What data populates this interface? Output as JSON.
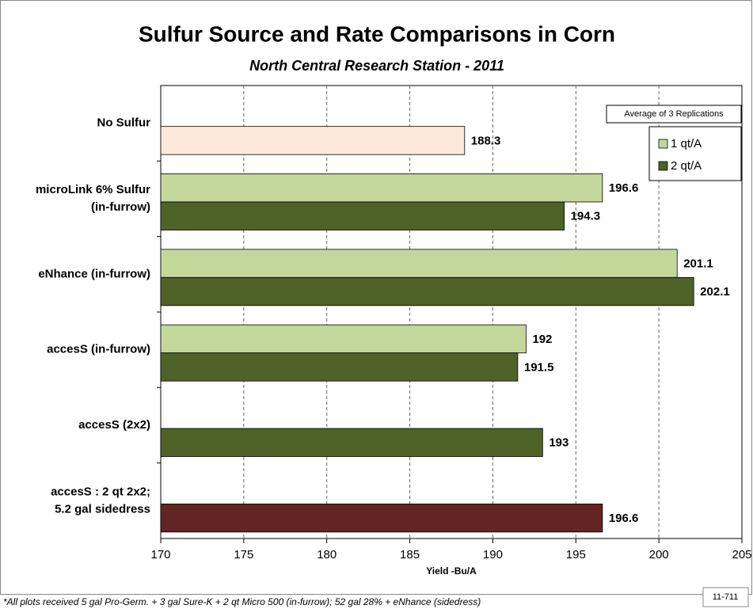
{
  "chart_data": {
    "type": "hbar",
    "title": "Sulfur Source and Rate Comparisons in Corn",
    "subtitle": "North Central Research Station - 2011",
    "annotation": "Average of 3 Replications",
    "x_label": "Yield -Bu/A",
    "footnote": "*All plots received 5 gal Pro-Germ. + 3 gal Sure-K + 2 qt Micro 500 (in-furrow); 52 gal 28% + eNhance (sidedress)",
    "code": "11-711",
    "categories": [
      "No Sulfur",
      "microLink 6% Sulfur\n(in-furrow)",
      "eNhance (in-furrow)",
      "accesS (in-furrow)",
      "accesS (2x2)",
      "accesS : 2 qt  2x2;\n5.2 gal sidedress"
    ],
    "series": [
      {
        "name": "1 qt/A",
        "color": "#c4d79b",
        "values": [
          null,
          196.6,
          201.1,
          192,
          null,
          null
        ]
      },
      {
        "name": "2 qt/A",
        "color": "#4f6228",
        "values": [
          188.3,
          194.3,
          202.1,
          191.5,
          193,
          196.6
        ],
        "colors": [
          "#fde9d9",
          "#4f6228",
          "#4f6228",
          "#4f6228",
          "#4f6228",
          "#632523"
        ]
      }
    ],
    "xlim": [
      170,
      205
    ],
    "xticks": [
      170,
      175,
      180,
      185,
      190,
      195,
      200,
      205
    ],
    "grid": true,
    "legend": "top-right"
  }
}
